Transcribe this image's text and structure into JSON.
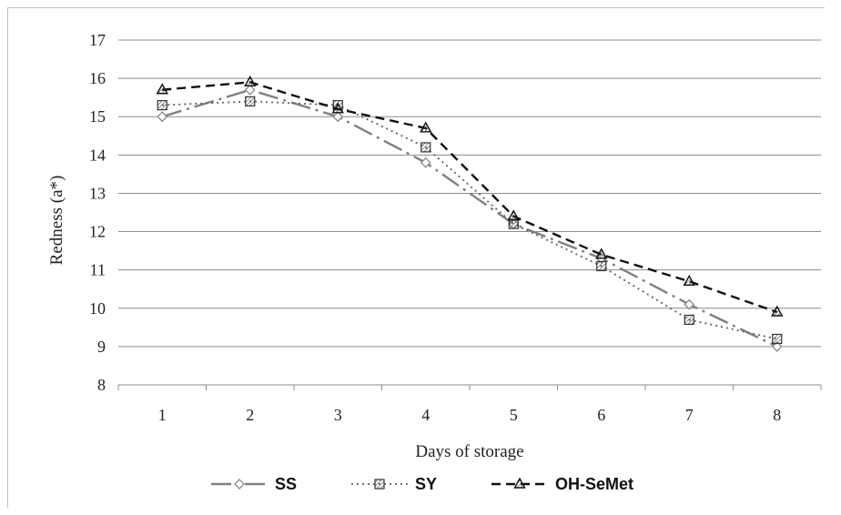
{
  "chart_data": {
    "type": "line",
    "title": "",
    "xlabel": "Days of storage",
    "ylabel": "Redness (a*)",
    "categories": [
      "1",
      "2",
      "3",
      "4",
      "5",
      "6",
      "7",
      "8"
    ],
    "ylim": [
      8,
      17
    ],
    "yticks": [
      "8",
      "9",
      "10",
      "11",
      "12",
      "13",
      "14",
      "15",
      "16",
      "17"
    ],
    "grid": true,
    "legend_position": "bottom",
    "series": [
      {
        "name": "SS",
        "values": [
          15.0,
          15.7,
          15.0,
          13.8,
          12.2,
          11.3,
          10.1,
          9.0
        ],
        "color": "#808080",
        "line_style": "long-dash-dot",
        "marker": "diamond"
      },
      {
        "name": "SY",
        "values": [
          15.3,
          15.4,
          15.3,
          14.2,
          12.2,
          11.1,
          9.7,
          9.2
        ],
        "color": "#606060",
        "line_style": "dotted",
        "marker": "hatched-square"
      },
      {
        "name": "OH-SeMet",
        "values": [
          15.7,
          15.9,
          15.2,
          14.7,
          12.4,
          11.4,
          10.7,
          9.9
        ],
        "color": "#111111",
        "line_style": "dashed",
        "marker": "triangle"
      }
    ]
  }
}
